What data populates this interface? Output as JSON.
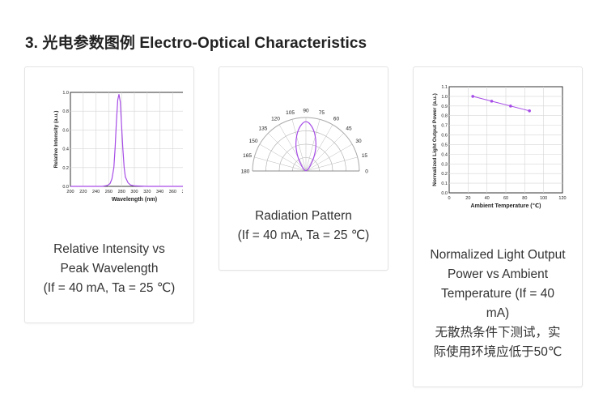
{
  "section": {
    "heading": "3. 光电参数图例 Electro-Optical Characteristics"
  },
  "cards": [
    {
      "caption_lines": [
        "Relative Intensity vs",
        "Peak Wavelength",
        "(If = 40 mA, Ta = 25 ℃)"
      ]
    },
    {
      "caption_lines": [
        "Radiation Pattern",
        "(If = 40 mA, Ta = 25 ℃)"
      ]
    },
    {
      "caption_lines": [
        "Normalized Light Output",
        "Power vs Ambient",
        "Temperature (If = 40",
        "mA)",
        "无散热条件下测试，实",
        "际使用环境应低于50℃"
      ]
    }
  ],
  "chart_data": [
    {
      "type": "line",
      "xlabel": "Wavelength (nm)",
      "ylabel": "Relative Intensity (a.u.)",
      "xlim": [
        200,
        400
      ],
      "ylim": [
        0,
        1.0
      ],
      "x_ticks": [
        "200",
        "220",
        "240",
        "260",
        "280",
        "300",
        "320",
        "340",
        "360",
        "380",
        "400"
      ],
      "y_ticks": [
        "0.0",
        "0.2",
        "0.4",
        "0.6",
        "0.8",
        "1.0"
      ],
      "series": [
        {
          "color": "#a64ce6",
          "x": [
            200,
            250,
            258,
            262,
            265,
            268,
            270,
            272,
            274,
            276,
            278,
            280,
            282,
            284,
            286,
            290,
            294,
            300,
            320,
            400
          ],
          "y": [
            0,
            0,
            0.01,
            0.03,
            0.08,
            0.2,
            0.42,
            0.7,
            0.92,
            0.98,
            0.9,
            0.65,
            0.4,
            0.2,
            0.1,
            0.04,
            0.015,
            0.005,
            0,
            0
          ]
        }
      ]
    },
    {
      "type": "polar",
      "angle_labels": [
        "0",
        "15",
        "30",
        "45",
        "60",
        "75",
        "90",
        "105",
        "120",
        "135",
        "150",
        "165",
        "180"
      ],
      "series": [
        {
          "color": "#a64ce6",
          "angle": [
            0,
            30,
            45,
            60,
            70,
            80,
            90,
            100,
            110,
            120,
            135,
            150,
            180
          ],
          "r": [
            0.0,
            0.03,
            0.1,
            0.35,
            0.6,
            0.85,
            1.0,
            0.85,
            0.6,
            0.35,
            0.1,
            0.03,
            0.0
          ]
        }
      ]
    },
    {
      "type": "line",
      "xlabel": "Ambient Temperature (℃)",
      "ylabel": "Normalized Light Output Power (a.u.)",
      "xlim": [
        0,
        120
      ],
      "ylim": [
        0,
        1.1
      ],
      "x_ticks": [
        "0",
        "20",
        "40",
        "60",
        "80",
        "100",
        "120"
      ],
      "y_ticks": [
        "0.0",
        "0.1",
        "0.2",
        "0.3",
        "0.4",
        "0.5",
        "0.6",
        "0.7",
        "0.8",
        "0.9",
        "1.0",
        "1.1"
      ],
      "series": [
        {
          "color": "#a64ce6",
          "x": [
            25,
            45,
            65,
            85
          ],
          "y": [
            1.0,
            0.95,
            0.9,
            0.85
          ]
        }
      ]
    }
  ]
}
